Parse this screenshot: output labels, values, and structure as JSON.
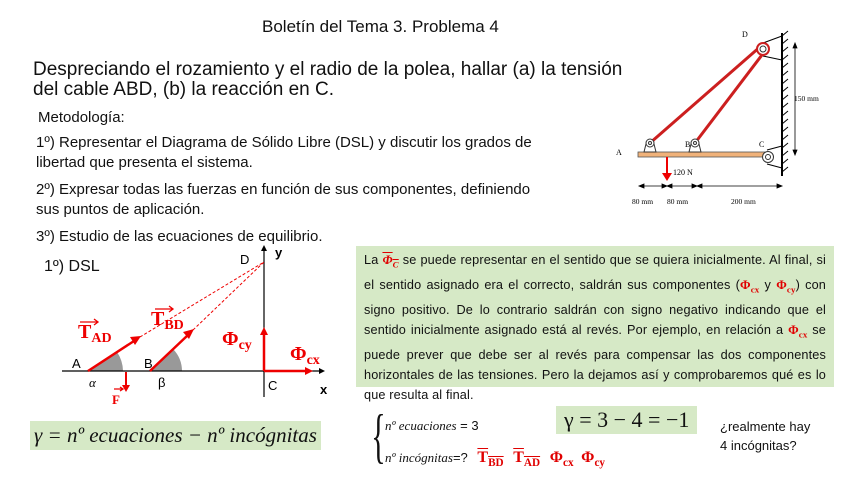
{
  "title": "Boletín del Tema 3. Problema 4",
  "statement": [
    "Despreciando el rozamiento y el radio de la polea, hallar (a) la tensión",
    "del cable ABD, (b) la reacción en C."
  ],
  "methodology": {
    "heading": "Metodología:",
    "step1": [
      "1º) Representar el Diagrama de Sólido Libre (DSL) y discutir los grados de",
      "libertad que presenta el sistema."
    ],
    "step2": [
      "2º) Expresar todas las fuerzas en función de sus componentes, definiendo",
      "sus puntos de aplicación."
    ],
    "step3": "3º) Estudio de las ecuaciones de equilibrio."
  },
  "figure": {
    "A": "A",
    "B": "B",
    "C": "C",
    "D": "D",
    "load": "120 N",
    "dim_a": "80 mm",
    "dim_b": "80 mm",
    "dim_c": "200 mm",
    "dim_h": "150 mm",
    "colors": {
      "cable": "#cc1f1f",
      "beam": "#f0b27a"
    }
  },
  "dsl": {
    "heading": "1º) DSL",
    "A": "A",
    "B": "B",
    "C": "C",
    "D": "D",
    "x": "x",
    "y": "y",
    "alpha": "α",
    "beta": "β",
    "F": "F",
    "TAD": "T",
    "TAD_sub": "AD",
    "TBD": "T",
    "TBD_sub": "BD",
    "phi_cy": "Φ",
    "phi_cy_sub": "cy",
    "phi_cx": "Φ",
    "phi_cx_sub": "cx"
  },
  "note": {
    "p1": "La ",
    "phi_c": "Φ",
    "phi_c_sub": "C",
    "p2": " se puede representar en el sentido que se quiera inicialmente. Al final, si el sentido asignado era el correcto, saldrán sus componentes (",
    "phi1": "Φ",
    "phi1_sub": "cx",
    "p3": " y ",
    "phi2": "Φ",
    "phi2_sub": "cy",
    "p4": ") con signo positivo.  De lo contrario saldrán con signo negativo indicando que el sentido inicialmente asignado está al revés. Por ejemplo, en relación a ",
    "phi3": "Φ",
    "phi3_sub": "cx",
    "p5": " se puede prever que debe ser al revés para compensar las dos componentes horizontales de las tensiones. Pero la dejamos así y comprobaremos qué es lo que resulta al final."
  },
  "formula": "γ = nº ecuaciones − nº incógnitas",
  "equations_label": "nº ecuaciones",
  "equations_value": "= 3",
  "unknowns_label": "nº incógnitas",
  "unknowns_value": "=?",
  "unknowns": [
    {
      "s": "T",
      "sub": "BD"
    },
    {
      "s": "T",
      "sub": "AD"
    },
    {
      "s": "Φ",
      "sub": "cx"
    },
    {
      "s": "Φ",
      "sub": "cy"
    }
  ],
  "result": "γ = 3 − 4 = −1",
  "question": [
    "¿realmente hay",
    "4 incógnitas?"
  ],
  "colors": {
    "highlight": "#d6e9c6",
    "vector": "#e00000"
  }
}
